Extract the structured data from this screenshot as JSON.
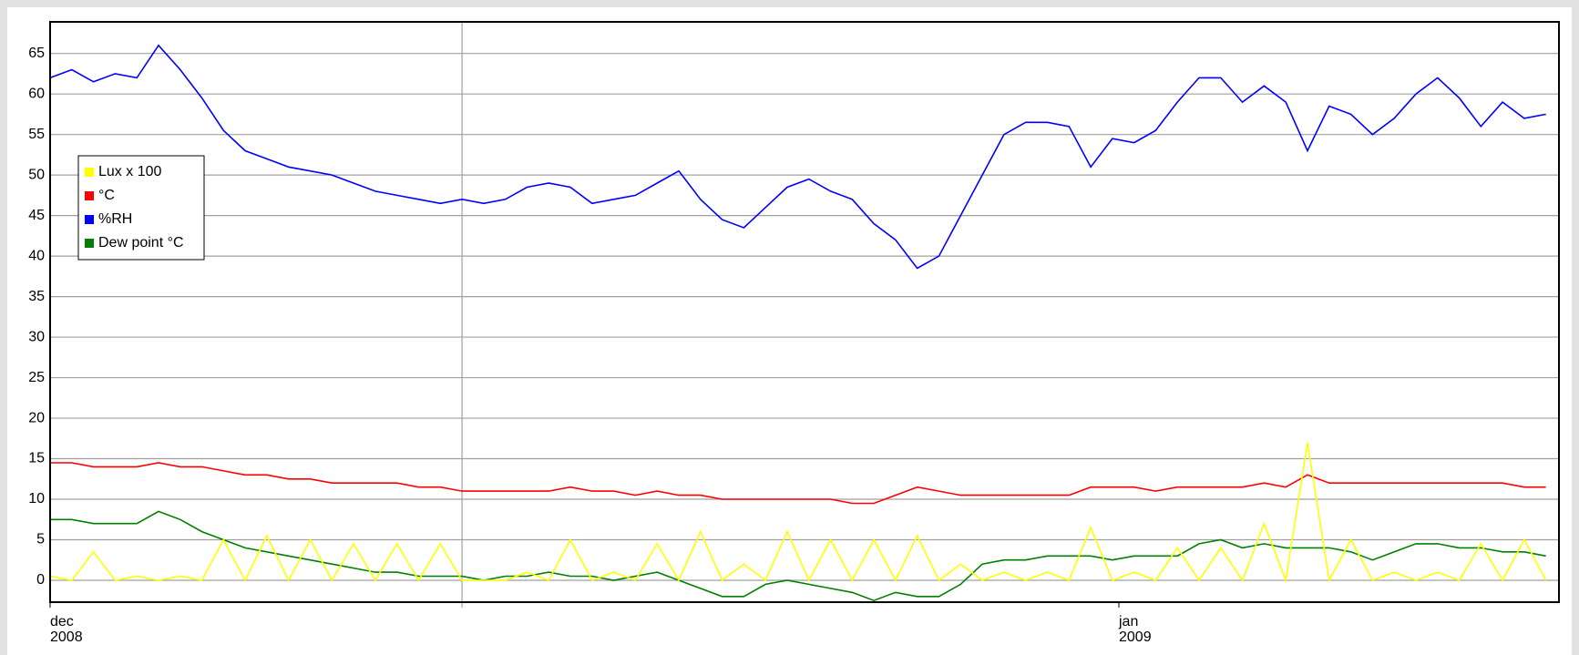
{
  "chart_data": {
    "type": "line",
    "x": [
      0,
      0.5,
      1,
      1.5,
      2,
      2.5,
      3,
      3.5,
      4,
      4.5,
      5,
      5.5,
      6,
      6.5,
      7,
      7.5,
      8,
      8.5,
      9,
      9.5,
      10,
      10.5,
      11,
      11.5,
      12,
      12.5,
      13,
      13.5,
      14,
      14.5,
      15,
      15.5,
      16,
      16.5,
      17,
      17.5,
      18,
      18.5,
      19,
      19.5,
      20,
      20.5,
      21,
      21.5,
      22,
      22.5,
      23,
      23.5,
      24,
      24.5,
      25,
      25.5,
      26,
      26.5,
      27,
      27.5,
      28,
      28.5,
      29,
      29.5,
      30,
      30.5,
      31,
      31.5,
      32,
      32.5,
      33,
      33.5,
      34,
      34.5
    ],
    "series": [
      {
        "name": "Lux x 100",
        "color": "#ffff00",
        "values": [
          0.5,
          0,
          3.5,
          0,
          0.5,
          0,
          0.5,
          0,
          5,
          0,
          5.5,
          0,
          5,
          0,
          4.5,
          0,
          4.5,
          0,
          4.5,
          0,
          0,
          0,
          1,
          0,
          5,
          0,
          1,
          0,
          4.5,
          0,
          6,
          0,
          2,
          0,
          6,
          0,
          5,
          0,
          5,
          0,
          5.5,
          0,
          2,
          0,
          1,
          0,
          1,
          0,
          6.5,
          0,
          1,
          0,
          4,
          0,
          4,
          0,
          7,
          0,
          17,
          0,
          5,
          0,
          1,
          0,
          1,
          0,
          4.5,
          0,
          5,
          0
        ]
      },
      {
        "name": "°C",
        "color": "#ff0000",
        "values": [
          14.5,
          14.5,
          14,
          14,
          14,
          14.5,
          14,
          14,
          13.5,
          13,
          13,
          12.5,
          12.5,
          12,
          12,
          12,
          12,
          11.5,
          11.5,
          11,
          11,
          11,
          11,
          11,
          11.5,
          11,
          11,
          10.5,
          11,
          10.5,
          10.5,
          10,
          10,
          10,
          10,
          10,
          10,
          9.5,
          9.5,
          10.5,
          11.5,
          11,
          10.5,
          10.5,
          10.5,
          10.5,
          10.5,
          10.5,
          11.5,
          11.5,
          11.5,
          11,
          11.5,
          11.5,
          11.5,
          11.5,
          12,
          11.5,
          13,
          12,
          12,
          12,
          12,
          12,
          12,
          12,
          12,
          12,
          11.5,
          11.5
        ]
      },
      {
        "name": "%RH",
        "color": "#0000ff",
        "values": [
          62,
          63,
          61.5,
          62.5,
          62,
          66,
          63,
          59.5,
          55.5,
          53,
          52,
          51,
          50.5,
          50,
          49,
          48,
          47.5,
          47,
          46.5,
          47,
          46.5,
          47,
          48.5,
          49,
          48.5,
          46.5,
          47,
          47.5,
          49,
          50.5,
          47,
          44.5,
          43.5,
          46,
          48.5,
          49.5,
          48,
          47,
          44,
          42,
          38.5,
          40,
          45,
          50,
          55,
          56.5,
          56.5,
          56,
          51,
          54.5,
          54,
          55.5,
          59,
          62,
          62,
          59,
          61,
          59,
          53,
          58.5,
          57.5,
          55,
          57,
          60,
          62,
          59.5,
          56,
          59,
          57,
          57.5
        ]
      },
      {
        "name": "Dew point °C",
        "color": "#008000",
        "values": [
          7.5,
          7.5,
          7,
          7,
          7,
          8.5,
          7.5,
          6,
          5,
          4,
          3.5,
          3,
          2.5,
          2,
          1.5,
          1,
          1,
          0.5,
          0.5,
          0.5,
          0,
          0.5,
          0.5,
          1,
          0.5,
          0.5,
          0,
          0.5,
          1,
          0,
          -1,
          -2,
          -2,
          -0.5,
          0,
          -0.5,
          -1,
          -1.5,
          -2.5,
          -1.5,
          -2,
          -2,
          -0.5,
          2,
          2.5,
          2.5,
          3,
          3,
          3,
          2.5,
          3,
          3,
          3,
          4.5,
          5,
          4,
          4.5,
          4,
          4,
          4,
          3.5,
          2.5,
          3.5,
          4.5,
          4.5,
          4,
          4,
          3.5,
          3.5,
          3
        ]
      }
    ],
    "xlim": [
      0,
      34.8
    ],
    "xticks": [
      {
        "value": 0,
        "label": "dec",
        "year": "2008"
      },
      {
        "value": 24.65,
        "label": "jan",
        "year": "2009"
      }
    ],
    "xgrid": [
      9.5
    ],
    "ylim": [
      -2.7,
      68.9
    ],
    "yticks": [
      0,
      5,
      10,
      15,
      20,
      25,
      30,
      35,
      40,
      45,
      50,
      55,
      60,
      65
    ],
    "grid": true,
    "legend": "left"
  }
}
